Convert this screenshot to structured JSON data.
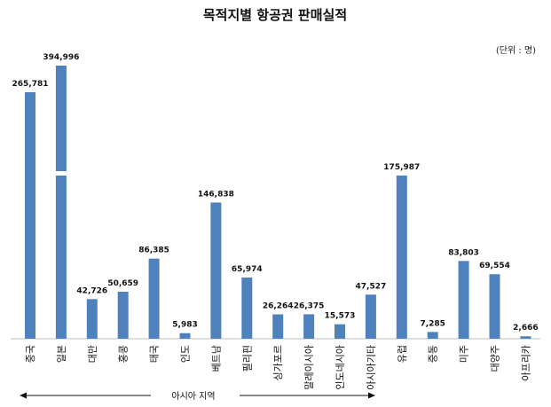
{
  "chart_data": {
    "type": "bar",
    "title": "목적지별 항공권 판매실적",
    "unit_label": "(단위 : 명)",
    "categories": [
      "중국",
      "일본",
      "대만",
      "홍콩",
      "태국",
      "인도",
      "베트남",
      "필리핀",
      "싱가포르",
      "말레이시아",
      "인도네시아",
      "아시아기타",
      "유럽",
      "중동",
      "미주",
      "대양주",
      "아프리카"
    ],
    "values": [
      265781,
      394996,
      42726,
      50659,
      86385,
      5983,
      146838,
      65974,
      26264,
      26375,
      15573,
      47527,
      175987,
      7285,
      83803,
      69554,
      2666
    ],
    "value_labels": [
      "265,781",
      "394,996",
      "42,726",
      "50,659",
      "86,385",
      "5,983",
      "146,838",
      "65,974",
      "26,264",
      "26,375",
      "15,573",
      "47,527",
      "175,987",
      "7,285",
      "83,803",
      "69,554",
      "2,666"
    ],
    "axis_break": {
      "category": "일본"
    },
    "region_annotation": {
      "label": "아시아 지역",
      "from_category": "중국",
      "to_category": "아시아기타"
    },
    "bar_color": "#4f81bd",
    "grid": false,
    "legend": "none"
  }
}
